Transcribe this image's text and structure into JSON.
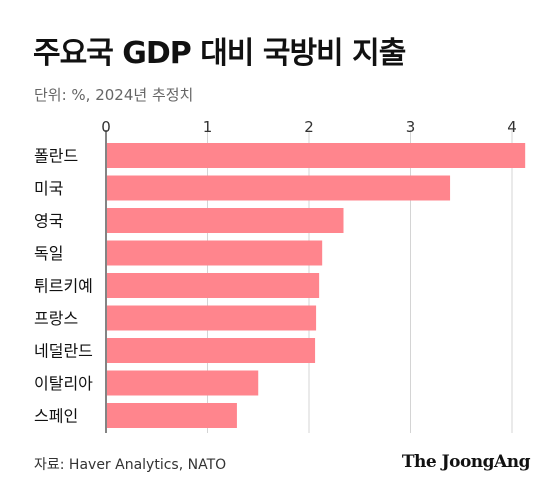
{
  "chart_data": {
    "type": "bar",
    "orientation": "horizontal",
    "title": "주요국 GDP 대비 국방비 지출",
    "subtitle": "단위: %, 2024년 추정치",
    "categories": [
      "폴란드",
      "미국",
      "영국",
      "독일",
      "튀르키예",
      "프랑스",
      "네덜란드",
      "이탈리아",
      "스페인"
    ],
    "values": [
      4.12,
      3.38,
      2.33,
      2.12,
      2.09,
      2.06,
      2.05,
      1.49,
      1.28
    ],
    "xlim": [
      0,
      4.2
    ],
    "xticks": [
      0,
      1,
      2,
      3,
      4
    ],
    "tick_labels": [
      "0",
      "1",
      "2",
      "3",
      "4"
    ],
    "bar_color": "#ff858d",
    "grid": true,
    "legend": "none"
  },
  "footer": {
    "source": "자료: Haver Analytics, NATO",
    "brand": "The JoongAng"
  }
}
